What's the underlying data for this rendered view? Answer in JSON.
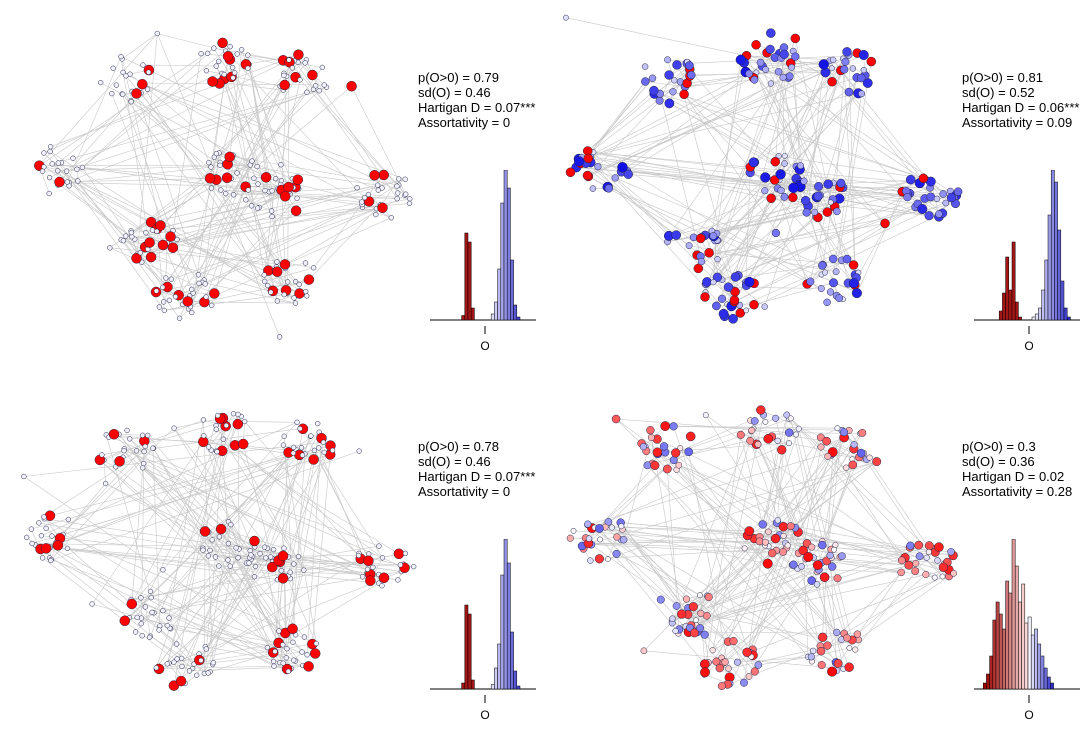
{
  "colors": {
    "edge": "#c8c8c8",
    "node_outline": "#222244",
    "red": "#ff0000",
    "blue": "#1010e6",
    "neutral": "#f2f2ff"
  },
  "panels": [
    {
      "stats": [
        "p(O>0) = 0.79",
        "sd(O) = 0.46",
        "Hartigan D = 0.07***",
        "Assortativity = 0"
      ],
      "node_mode": "binary",
      "seed": 11,
      "hist": {
        "xlabel": "O",
        "neg": [
          0,
          0,
          0,
          3,
          58,
          52,
          8,
          0
        ],
        "pos": [
          0,
          4,
          12,
          34,
          78,
          100,
          88,
          40,
          10,
          2,
          0
        ]
      }
    },
    {
      "stats": [
        "p(O>0) = 0.81",
        "sd(O) = 0.52",
        "Hartigan D = 0.06***",
        "Assortativity = 0.09"
      ],
      "node_mode": "spread",
      "seed": 29,
      "hist": {
        "xlabel": "O",
        "neg": [
          0,
          6,
          18,
          42,
          20,
          52,
          12,
          2
        ],
        "pos": [
          2,
          4,
          8,
          20,
          40,
          70,
          100,
          92,
          60,
          26,
          8,
          2
        ]
      }
    },
    {
      "stats": [
        "p(O>0) = 0.78",
        "sd(O) = 0.46",
        "Hartigan D = 0.07***",
        "Assortativity = 0"
      ],
      "node_mode": "binary",
      "seed": 47,
      "hist": {
        "xlabel": "O",
        "neg": [
          0,
          0,
          0,
          4,
          56,
          50,
          6,
          0
        ],
        "pos": [
          0,
          3,
          14,
          30,
          76,
          100,
          84,
          38,
          12,
          2,
          0
        ]
      }
    },
    {
      "stats": [
        "p(O>0) = 0.3",
        "sd(O) = 0.36",
        "Hartigan D = 0.02",
        "Assortativity = 0.28"
      ],
      "node_mode": "mixed",
      "seed": 73,
      "hist": {
        "xlabel": "O",
        "neg": [
          4,
          10,
          22,
          46,
          58,
          50,
          40,
          72,
          64,
          100,
          82,
          58,
          70,
          44
        ],
        "pos": [
          48,
          36,
          40,
          30,
          22,
          14,
          8,
          4
        ]
      }
    }
  ]
}
